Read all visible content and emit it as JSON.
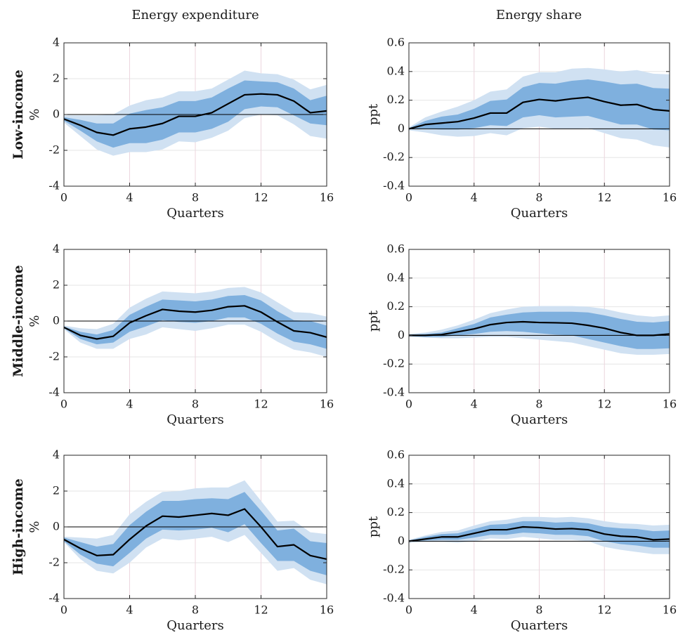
{
  "figure": {
    "column_titles": [
      "Energy expenditure",
      "Energy share"
    ],
    "row_labels": [
      "Low-income",
      "Middle-income",
      "High-income"
    ]
  },
  "colors": {
    "band_outer": "#d0e1f2",
    "band_inner": "#7fb0de",
    "line": "#000000",
    "zero_line": "#000000",
    "grid": "#e6e6e6",
    "vgrid": "#ecd6de",
    "axes": "#262626"
  },
  "chart_data": [
    {
      "type": "area",
      "row": "Low-income",
      "column": "Energy expenditure",
      "xlabel": "Quarters",
      "ylabel": "%",
      "xlim": [
        0,
        16
      ],
      "ylim": [
        -4,
        4
      ],
      "xticks": [
        0,
        4,
        8,
        12,
        16
      ],
      "yticks": [
        -4,
        -2,
        0,
        2,
        4
      ],
      "grid": true,
      "x": [
        0,
        1,
        2,
        3,
        4,
        5,
        6,
        7,
        8,
        9,
        10,
        11,
        12,
        13,
        14,
        15,
        16
      ],
      "series": [
        {
          "role": "median",
          "values": [
            -0.25,
            -0.6,
            -1.0,
            -1.15,
            -0.8,
            -0.7,
            -0.5,
            -0.1,
            -0.1,
            0.1,
            0.6,
            1.1,
            1.15,
            1.1,
            0.75,
            0.1,
            0.2
          ]
        },
        {
          "role": "band68_lower",
          "values": [
            -0.35,
            -0.9,
            -1.5,
            -1.85,
            -1.6,
            -1.6,
            -1.4,
            -1.0,
            -1.0,
            -0.8,
            -0.4,
            0.3,
            0.45,
            0.4,
            -0.05,
            -0.5,
            -0.6
          ]
        },
        {
          "role": "band68_upper",
          "values": [
            -0.15,
            -0.3,
            -0.5,
            -0.5,
            0.05,
            0.25,
            0.4,
            0.75,
            0.75,
            0.95,
            1.45,
            1.9,
            1.85,
            1.8,
            1.45,
            0.8,
            1.05
          ]
        },
        {
          "role": "band90_lower",
          "values": [
            -0.45,
            -1.2,
            -1.95,
            -2.3,
            -2.1,
            -2.1,
            -1.95,
            -1.5,
            -1.55,
            -1.3,
            -0.9,
            -0.2,
            0.0,
            -0.05,
            -0.55,
            -1.2,
            -1.35
          ]
        },
        {
          "role": "band90_upper",
          "values": [
            -0.05,
            -0.05,
            -0.05,
            0.0,
            0.5,
            0.8,
            0.95,
            1.3,
            1.3,
            1.45,
            1.95,
            2.45,
            2.3,
            2.25,
            1.95,
            1.4,
            1.65
          ]
        }
      ]
    },
    {
      "type": "area",
      "row": "Low-income",
      "column": "Energy share",
      "xlabel": "Quarters",
      "ylabel": "ppt",
      "xlim": [
        0,
        16
      ],
      "ylim": [
        -0.4,
        0.6
      ],
      "xticks": [
        0,
        4,
        8,
        12,
        16
      ],
      "yticks": [
        -0.4,
        -0.2,
        0,
        0.2,
        0.4,
        0.6
      ],
      "grid": true,
      "x": [
        0,
        1,
        2,
        3,
        4,
        5,
        6,
        7,
        8,
        9,
        10,
        11,
        12,
        13,
        14,
        15,
        16
      ],
      "series": [
        {
          "role": "median",
          "values": [
            0.0,
            0.03,
            0.04,
            0.05,
            0.075,
            0.11,
            0.11,
            0.185,
            0.205,
            0.195,
            0.21,
            0.22,
            0.19,
            0.165,
            0.17,
            0.135,
            0.125
          ]
        },
        {
          "role": "band68_lower",
          "values": [
            -0.005,
            0.0,
            -0.005,
            -0.005,
            0.005,
            0.025,
            0.02,
            0.08,
            0.095,
            0.08,
            0.085,
            0.09,
            0.06,
            0.03,
            0.03,
            -0.005,
            -0.01
          ]
        },
        {
          "role": "band68_upper",
          "values": [
            0.005,
            0.055,
            0.085,
            0.1,
            0.14,
            0.195,
            0.205,
            0.29,
            0.32,
            0.315,
            0.335,
            0.345,
            0.33,
            0.31,
            0.315,
            0.285,
            0.28
          ]
        },
        {
          "role": "band90_lower",
          "values": [
            -0.01,
            -0.025,
            -0.045,
            -0.055,
            -0.05,
            -0.03,
            -0.045,
            0.005,
            0.015,
            0.0,
            0.0,
            0.005,
            -0.03,
            -0.065,
            -0.075,
            -0.115,
            -0.13
          ]
        },
        {
          "role": "band90_upper",
          "values": [
            0.01,
            0.08,
            0.12,
            0.155,
            0.2,
            0.26,
            0.275,
            0.365,
            0.395,
            0.395,
            0.42,
            0.425,
            0.415,
            0.4,
            0.41,
            0.385,
            0.38
          ]
        }
      ]
    },
    {
      "type": "area",
      "row": "Middle-income",
      "column": "Energy expenditure",
      "xlabel": "Quarters",
      "ylabel": "%",
      "xlim": [
        0,
        16
      ],
      "ylim": [
        -4,
        4
      ],
      "xticks": [
        0,
        4,
        8,
        12,
        16
      ],
      "yticks": [
        -4,
        -2,
        0,
        2,
        4
      ],
      "grid": true,
      "x": [
        0,
        1,
        2,
        3,
        4,
        5,
        6,
        7,
        8,
        9,
        10,
        11,
        12,
        13,
        14,
        15,
        16
      ],
      "series": [
        {
          "role": "median",
          "values": [
            -0.35,
            -0.8,
            -1.0,
            -0.85,
            -0.1,
            0.3,
            0.65,
            0.55,
            0.5,
            0.6,
            0.8,
            0.85,
            0.5,
            -0.05,
            -0.55,
            -0.65,
            -0.9
          ]
        },
        {
          "role": "band68_lower",
          "values": [
            -0.4,
            -1.0,
            -1.3,
            -1.2,
            -0.6,
            -0.3,
            0.05,
            -0.05,
            -0.1,
            0.0,
            0.2,
            0.2,
            -0.15,
            -0.7,
            -1.15,
            -1.3,
            -1.55
          ]
        },
        {
          "role": "band68_upper",
          "values": [
            -0.3,
            -0.6,
            -0.75,
            -0.5,
            0.35,
            0.8,
            1.2,
            1.15,
            1.1,
            1.2,
            1.4,
            1.45,
            1.15,
            0.55,
            0.05,
            0.0,
            -0.25
          ]
        },
        {
          "role": "band90_lower",
          "values": [
            -0.45,
            -1.2,
            -1.55,
            -1.55,
            -1.0,
            -0.75,
            -0.35,
            -0.45,
            -0.55,
            -0.4,
            -0.2,
            -0.2,
            -0.6,
            -1.15,
            -1.6,
            -1.75,
            -2.0
          ]
        },
        {
          "role": "band90_upper",
          "values": [
            -0.25,
            -0.4,
            -0.45,
            -0.15,
            0.75,
            1.25,
            1.65,
            1.6,
            1.55,
            1.65,
            1.85,
            1.9,
            1.6,
            1.05,
            0.5,
            0.45,
            0.25
          ]
        }
      ]
    },
    {
      "type": "area",
      "row": "Middle-income",
      "column": "Energy share",
      "xlabel": "Quarters",
      "ylabel": "ppt",
      "xlim": [
        0,
        16
      ],
      "ylim": [
        -0.4,
        0.6
      ],
      "xticks": [
        0,
        4,
        8,
        12,
        16
      ],
      "yticks": [
        -0.4,
        -0.2,
        0,
        0.2,
        0.4,
        0.6
      ],
      "grid": true,
      "x": [
        0,
        1,
        2,
        3,
        4,
        5,
        6,
        7,
        8,
        9,
        10,
        11,
        12,
        13,
        14,
        15,
        16
      ],
      "series": [
        {
          "role": "median",
          "values": [
            0.0,
            0.0,
            0.005,
            0.025,
            0.045,
            0.075,
            0.09,
            0.095,
            0.09,
            0.088,
            0.085,
            0.07,
            0.05,
            0.02,
            0.0,
            0.0,
            0.01
          ]
        },
        {
          "role": "band68_lower",
          "values": [
            -0.005,
            -0.01,
            -0.01,
            0.0,
            0.01,
            0.025,
            0.03,
            0.025,
            0.015,
            0.005,
            0.0,
            -0.025,
            -0.05,
            -0.075,
            -0.095,
            -0.095,
            -0.09
          ]
        },
        {
          "role": "band68_upper",
          "values": [
            0.005,
            0.01,
            0.02,
            0.05,
            0.08,
            0.125,
            0.145,
            0.16,
            0.165,
            0.165,
            0.165,
            0.16,
            0.14,
            0.115,
            0.095,
            0.09,
            0.1
          ]
        },
        {
          "role": "band90_lower",
          "values": [
            -0.01,
            -0.015,
            -0.02,
            -0.02,
            -0.015,
            -0.01,
            -0.01,
            -0.02,
            -0.03,
            -0.04,
            -0.05,
            -0.075,
            -0.1,
            -0.125,
            -0.135,
            -0.135,
            -0.13
          ]
        },
        {
          "role": "band90_upper",
          "values": [
            0.01,
            0.02,
            0.04,
            0.07,
            0.11,
            0.155,
            0.18,
            0.2,
            0.205,
            0.205,
            0.205,
            0.2,
            0.185,
            0.16,
            0.14,
            0.13,
            0.14
          ]
        }
      ]
    },
    {
      "type": "area",
      "row": "High-income",
      "column": "Energy expenditure",
      "xlabel": "Quarters",
      "ylabel": "%",
      "xlim": [
        0,
        16
      ],
      "ylim": [
        -4,
        4
      ],
      "xticks": [
        0,
        4,
        8,
        12,
        16
      ],
      "yticks": [
        -4,
        -2,
        0,
        2,
        4
      ],
      "grid": true,
      "x": [
        0,
        1,
        2,
        3,
        4,
        5,
        6,
        7,
        8,
        9,
        10,
        11,
        12,
        13,
        14,
        15,
        16
      ],
      "series": [
        {
          "role": "median",
          "values": [
            -0.7,
            -1.2,
            -1.6,
            -1.55,
            -0.7,
            0.05,
            0.6,
            0.55,
            0.65,
            0.75,
            0.65,
            1.0,
            0.0,
            -1.1,
            -1.0,
            -1.6,
            -1.8
          ]
        },
        {
          "role": "band68_lower",
          "values": [
            -0.8,
            -1.55,
            -2.05,
            -2.2,
            -1.45,
            -0.65,
            -0.15,
            -0.2,
            -0.15,
            -0.05,
            -0.3,
            0.15,
            -0.9,
            -1.9,
            -1.9,
            -2.45,
            -2.7
          ]
        },
        {
          "role": "band68_upper",
          "values": [
            -0.6,
            -0.85,
            -1.1,
            -0.95,
            0.1,
            0.85,
            1.45,
            1.45,
            1.55,
            1.6,
            1.55,
            1.95,
            0.9,
            -0.2,
            -0.1,
            -0.8,
            -0.9
          ]
        },
        {
          "role": "band90_lower",
          "values": [
            -0.85,
            -1.8,
            -2.45,
            -2.6,
            -2.0,
            -1.15,
            -0.65,
            -0.75,
            -0.65,
            -0.55,
            -0.85,
            -0.45,
            -1.45,
            -2.45,
            -2.3,
            -2.95,
            -3.2
          ]
        },
        {
          "role": "band90_upper",
          "values": [
            -0.55,
            -0.6,
            -0.65,
            -0.45,
            0.7,
            1.4,
            1.95,
            2.0,
            2.15,
            2.2,
            2.2,
            2.6,
            1.45,
            0.3,
            0.35,
            -0.3,
            -0.4
          ]
        }
      ]
    },
    {
      "type": "area",
      "row": "High-income",
      "column": "Energy share",
      "xlabel": "Quarters",
      "ylabel": "ppt",
      "xlim": [
        0,
        16
      ],
      "ylim": [
        -0.4,
        0.6
      ],
      "xticks": [
        0,
        4,
        8,
        12,
        16
      ],
      "yticks": [
        -0.4,
        -0.2,
        0,
        0.2,
        0.4,
        0.6
      ],
      "grid": true,
      "x": [
        0,
        1,
        2,
        3,
        4,
        5,
        6,
        7,
        8,
        9,
        10,
        11,
        12,
        13,
        14,
        15,
        16
      ],
      "series": [
        {
          "role": "median",
          "values": [
            0.0,
            0.015,
            0.03,
            0.03,
            0.055,
            0.08,
            0.08,
            0.1,
            0.095,
            0.085,
            0.088,
            0.08,
            0.05,
            0.035,
            0.03,
            0.01,
            0.015
          ]
        },
        {
          "role": "band68_lower",
          "values": [
            -0.005,
            0.005,
            0.01,
            0.01,
            0.025,
            0.045,
            0.045,
            0.06,
            0.055,
            0.045,
            0.045,
            0.035,
            0.0,
            -0.02,
            -0.03,
            -0.045,
            -0.045
          ]
        },
        {
          "role": "band68_upper",
          "values": [
            0.005,
            0.03,
            0.05,
            0.055,
            0.085,
            0.115,
            0.12,
            0.14,
            0.14,
            0.13,
            0.135,
            0.125,
            0.1,
            0.09,
            0.085,
            0.07,
            0.075
          ]
        },
        {
          "role": "band90_lower",
          "values": [
            -0.01,
            -0.005,
            -0.005,
            -0.01,
            0.0,
            0.02,
            0.015,
            0.03,
            0.02,
            0.01,
            0.01,
            0.0,
            -0.04,
            -0.06,
            -0.075,
            -0.09,
            -0.09
          ]
        },
        {
          "role": "band90_upper",
          "values": [
            0.01,
            0.04,
            0.065,
            0.075,
            0.11,
            0.14,
            0.15,
            0.17,
            0.17,
            0.165,
            0.17,
            0.16,
            0.14,
            0.125,
            0.12,
            0.11,
            0.115
          ]
        }
      ]
    }
  ]
}
